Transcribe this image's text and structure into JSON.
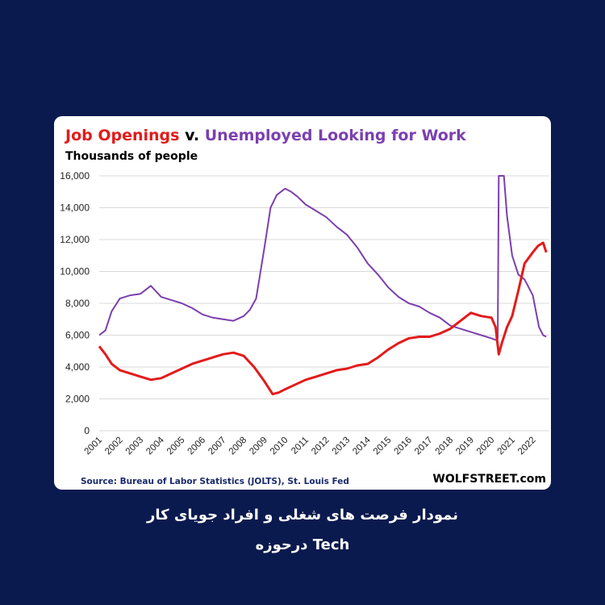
{
  "caption": {
    "line1": "نمودار فرصت های شغلی و افراد جویای کار",
    "line2": "Tech درحوزه"
  },
  "colors": {
    "background": "#0b1a4e",
    "job_openings": "#e31b1b",
    "unemployed": "#7b3fb0"
  },
  "chart_data": {
    "type": "line",
    "title_part1": "Job Openings",
    "title_part2": " v. ",
    "title_part3": "Unemployed Looking for Work",
    "subtitle": "Thousands of people",
    "source": "Source: Bureau of Labor Statistics (JOLTS), St. Louis Fed",
    "brand": "WOLFSTREET.com",
    "ylim": [
      0,
      16000
    ],
    "yticks": [
      "0",
      "2,000",
      "4,000",
      "6,000",
      "8,000",
      "10,000",
      "12,000",
      "14,000",
      "16,000"
    ],
    "xlim": [
      2001,
      2022.8
    ],
    "xticks": [
      "2001",
      "2002",
      "2003",
      "2004",
      "2005",
      "2006",
      "2007",
      "2008",
      "2009",
      "2010",
      "2011",
      "2012",
      "2013",
      "2014",
      "2015",
      "2016",
      "2017",
      "2018",
      "2019",
      "2020",
      "2021",
      "2022"
    ],
    "grid": true,
    "series": [
      {
        "name": "Job Openings",
        "color": "#e31b1b",
        "x": [
          2001.0,
          2001.3,
          2001.6,
          2002.0,
          2002.5,
          2003.0,
          2003.5,
          2004.0,
          2004.5,
          2005.0,
          2005.5,
          2006.0,
          2006.5,
          2007.0,
          2007.5,
          2008.0,
          2008.5,
          2009.0,
          2009.4,
          2009.7,
          2010.0,
          2010.5,
          2011.0,
          2011.5,
          2012.0,
          2012.5,
          2013.0,
          2013.5,
          2014.0,
          2014.5,
          2015.0,
          2015.5,
          2016.0,
          2016.5,
          2017.0,
          2017.5,
          2018.0,
          2018.5,
          2019.0,
          2019.5,
          2020.0,
          2020.2,
          2020.35,
          2020.5,
          2020.75,
          2021.0,
          2021.3,
          2021.6,
          2022.0,
          2022.25,
          2022.5,
          2022.65
        ],
        "values": [
          5300,
          4800,
          4200,
          3800,
          3600,
          3400,
          3200,
          3300,
          3600,
          3900,
          4200,
          4400,
          4600,
          4800,
          4900,
          4700,
          4000,
          3100,
          2300,
          2400,
          2600,
          2900,
          3200,
          3400,
          3600,
          3800,
          3900,
          4100,
          4200,
          4600,
          5100,
          5500,
          5800,
          5900,
          5900,
          6100,
          6400,
          6900,
          7400,
          7200,
          7100,
          6500,
          4800,
          5500,
          6500,
          7200,
          8800,
          10500,
          11200,
          11600,
          11800,
          11200
        ]
      },
      {
        "name": "Unemployed Looking for Work",
        "color": "#7b3fb0",
        "x": [
          2001.0,
          2001.3,
          2001.6,
          2002.0,
          2002.5,
          2003.0,
          2003.5,
          2004.0,
          2004.5,
          2005.0,
          2005.5,
          2006.0,
          2006.5,
          2007.0,
          2007.5,
          2008.0,
          2008.3,
          2008.6,
          2009.0,
          2009.3,
          2009.6,
          2010.0,
          2010.3,
          2010.6,
          2011.0,
          2011.5,
          2012.0,
          2012.5,
          2013.0,
          2013.5,
          2014.0,
          2014.5,
          2015.0,
          2015.5,
          2016.0,
          2016.5,
          2017.0,
          2017.5,
          2018.0,
          2018.5,
          2019.0,
          2019.5,
          2020.0,
          2020.2,
          2020.3,
          2020.35,
          2020.45,
          2020.6,
          2020.75,
          2021.0,
          2021.3,
          2021.6,
          2022.0,
          2022.3,
          2022.5,
          2022.65
        ],
        "values": [
          6000,
          6300,
          7500,
          8300,
          8500,
          8600,
          9100,
          8400,
          8200,
          8000,
          7700,
          7300,
          7100,
          7000,
          6900,
          7200,
          7600,
          8300,
          11500,
          14000,
          14800,
          15200,
          15000,
          14700,
          14200,
          13800,
          13400,
          12800,
          12300,
          11500,
          10500,
          9800,
          9000,
          8400,
          8000,
          7800,
          7400,
          7100,
          6600,
          6400,
          6200,
          6000,
          5800,
          5700,
          5800,
          16000,
          16000,
          16000,
          13500,
          11000,
          9800,
          9500,
          8500,
          6500,
          6000,
          5900
        ]
      }
    ]
  }
}
